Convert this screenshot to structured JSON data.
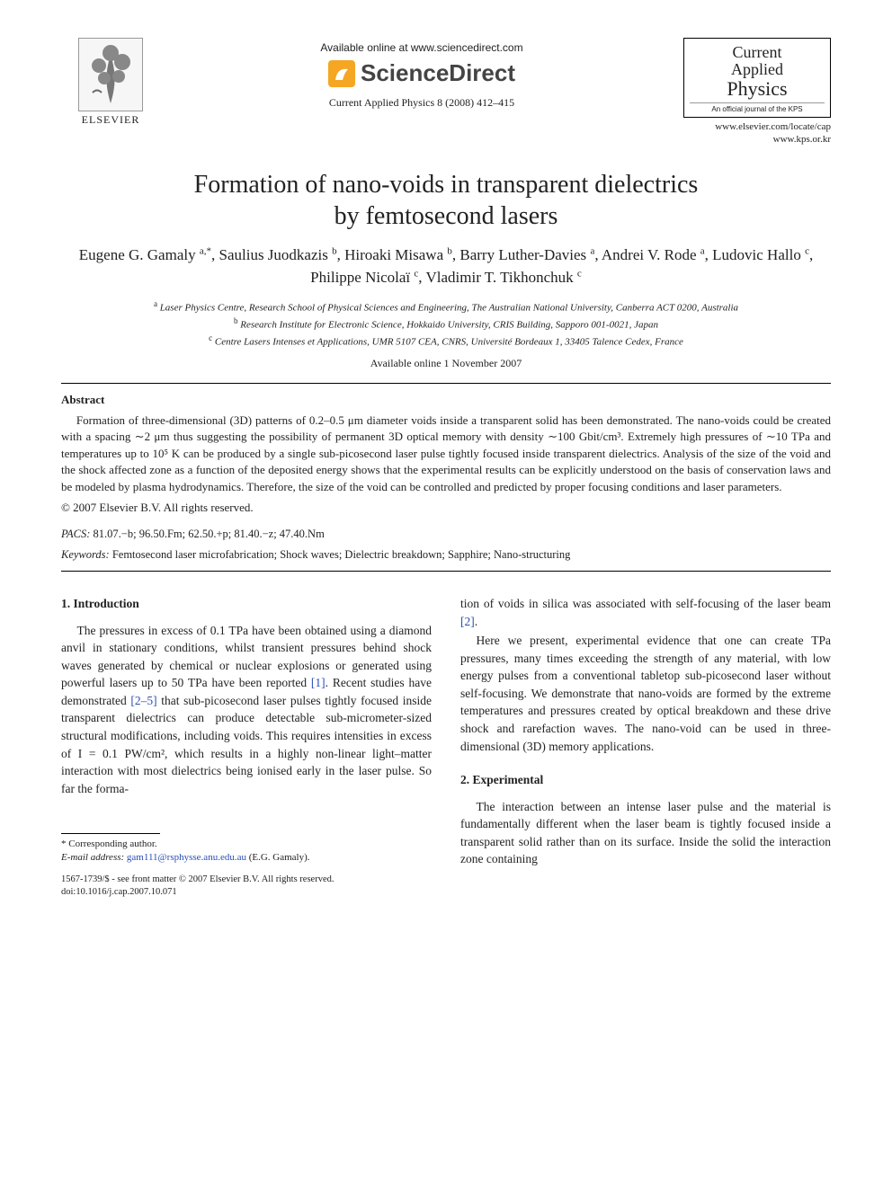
{
  "header": {
    "publisher_label": "ELSEVIER",
    "available_online": "Available online at www.sciencedirect.com",
    "brand": "ScienceDirect",
    "citation": "Current Applied Physics 8 (2008) 412–415",
    "journal_box": {
      "l1": "Current",
      "l2": "Applied",
      "l3": "Physics",
      "sub": "An official journal of the KPS"
    },
    "url1": "www.elsevier.com/locate/cap",
    "url2": "www.kps.or.kr"
  },
  "title_l1": "Formation of nano-voids in transparent dielectrics",
  "title_l2": "by femtosecond lasers",
  "authors_html": "Eugene G. Gamaly <sup>a,*</sup>, Saulius Juodkazis <sup>b</sup>, Hiroaki Misawa <sup>b</sup>, Barry Luther-Davies <sup>a</sup>, Andrei V. Rode <sup>a</sup>, Ludovic Hallo <sup>c</sup>, Philippe Nicolaï <sup>c</sup>, Vladimir T. Tikhonchuk <sup>c</sup>",
  "affiliations": {
    "a": "Laser Physics Centre, Research School of Physical Sciences and Engineering, The Australian National University, Canberra ACT 0200, Australia",
    "b": "Research Institute for Electronic Science, Hokkaido University, CRIS Building, Sapporo 001-0021, Japan",
    "c": "Centre Lasers Intenses et Applications, UMR 5107 CEA, CNRS, Université Bordeaux 1, 33405 Talence Cedex, France"
  },
  "date_available": "Available online 1 November 2007",
  "abstract_heading": "Abstract",
  "abstract_text": "Formation of three-dimensional (3D) patterns of 0.2–0.5 μm diameter voids inside a transparent solid has been demonstrated. The nano-voids could be created with a spacing ∼2 μm thus suggesting the possibility of permanent 3D optical memory with density ∼100 Gbit/cm³. Extremely high pressures of ∼10 TPa and temperatures up to 10⁵ K can be produced by a single sub-picosecond laser pulse tightly focused inside transparent dielectrics. Analysis of the size of the void and the shock affected zone as a function of the deposited energy shows that the experimental results can be explicitly understood on the basis of conservation laws and be modeled by plasma hydrodynamics. Therefore, the size of the void can be controlled and predicted by proper focusing conditions and laser parameters.",
  "copyright": "© 2007 Elsevier B.V. All rights reserved.",
  "pacs_label": "PACS:",
  "pacs": "81.07.−b; 96.50.Fm; 62.50.+p; 81.40.−z; 47.40.Nm",
  "keywords_label": "Keywords:",
  "keywords": "Femtosecond laser microfabrication; Shock waves; Dielectric breakdown; Sapphire; Nano-structuring",
  "sections": {
    "intro_head": "1. Introduction",
    "intro_p1a": "The pressures in excess of 0.1 TPa have been obtained using a diamond anvil in stationary conditions, whilst transient pressures behind shock waves generated by chemical or nuclear explosions or generated using powerful lasers up to 50 TPa have been reported ",
    "intro_p1_ref1": "[1]",
    "intro_p1b": ". Recent studies have demonstrated ",
    "intro_p1_ref2": "[2–5]",
    "intro_p1c": " that sub-picosecond laser pulses tightly focused inside transparent dielectrics can produce detectable sub-micrometer-sized structural modifications, including voids. This requires intensities in excess of I = 0.1 PW/cm², which results in a highly non-linear light–matter interaction with most dielectrics being ionised early in the laser pulse. So far the forma-",
    "intro_p1_colr_a": "tion of voids in silica was associated with self-focusing of the laser beam ",
    "intro_p1_colr_ref": "[2]",
    "intro_p1_colr_b": ".",
    "intro_p2": "Here we present, experimental evidence that one can create TPa pressures, many times exceeding the strength of any material, with low energy pulses from a conventional tabletop sub-picosecond laser without self-focusing. We demonstrate that nano-voids are formed by the extreme temperatures and pressures created by optical breakdown and these drive shock and rarefaction waves. The nano-void can be used in three-dimensional (3D) memory applications.",
    "exp_head": "2. Experimental",
    "exp_p1": "The interaction between an intense laser pulse and the material is fundamentally different when the laser beam is tightly focused inside a transparent solid rather than on its surface. Inside the solid the interaction zone containing"
  },
  "footnote": {
    "star": "* Corresponding author.",
    "email_lbl": "E-mail address:",
    "email": "gam111@rsphysse.anu.edu.au",
    "email_who": "(E.G. Gamaly)."
  },
  "bottom": {
    "l1": "1567-1739/$ - see front matter © 2007 Elsevier B.V. All rights reserved.",
    "l2": "doi:10.1016/j.cap.2007.10.071"
  },
  "colors": {
    "link": "#2a4db7",
    "text": "#222222",
    "sd_orange": "#f5a623"
  }
}
